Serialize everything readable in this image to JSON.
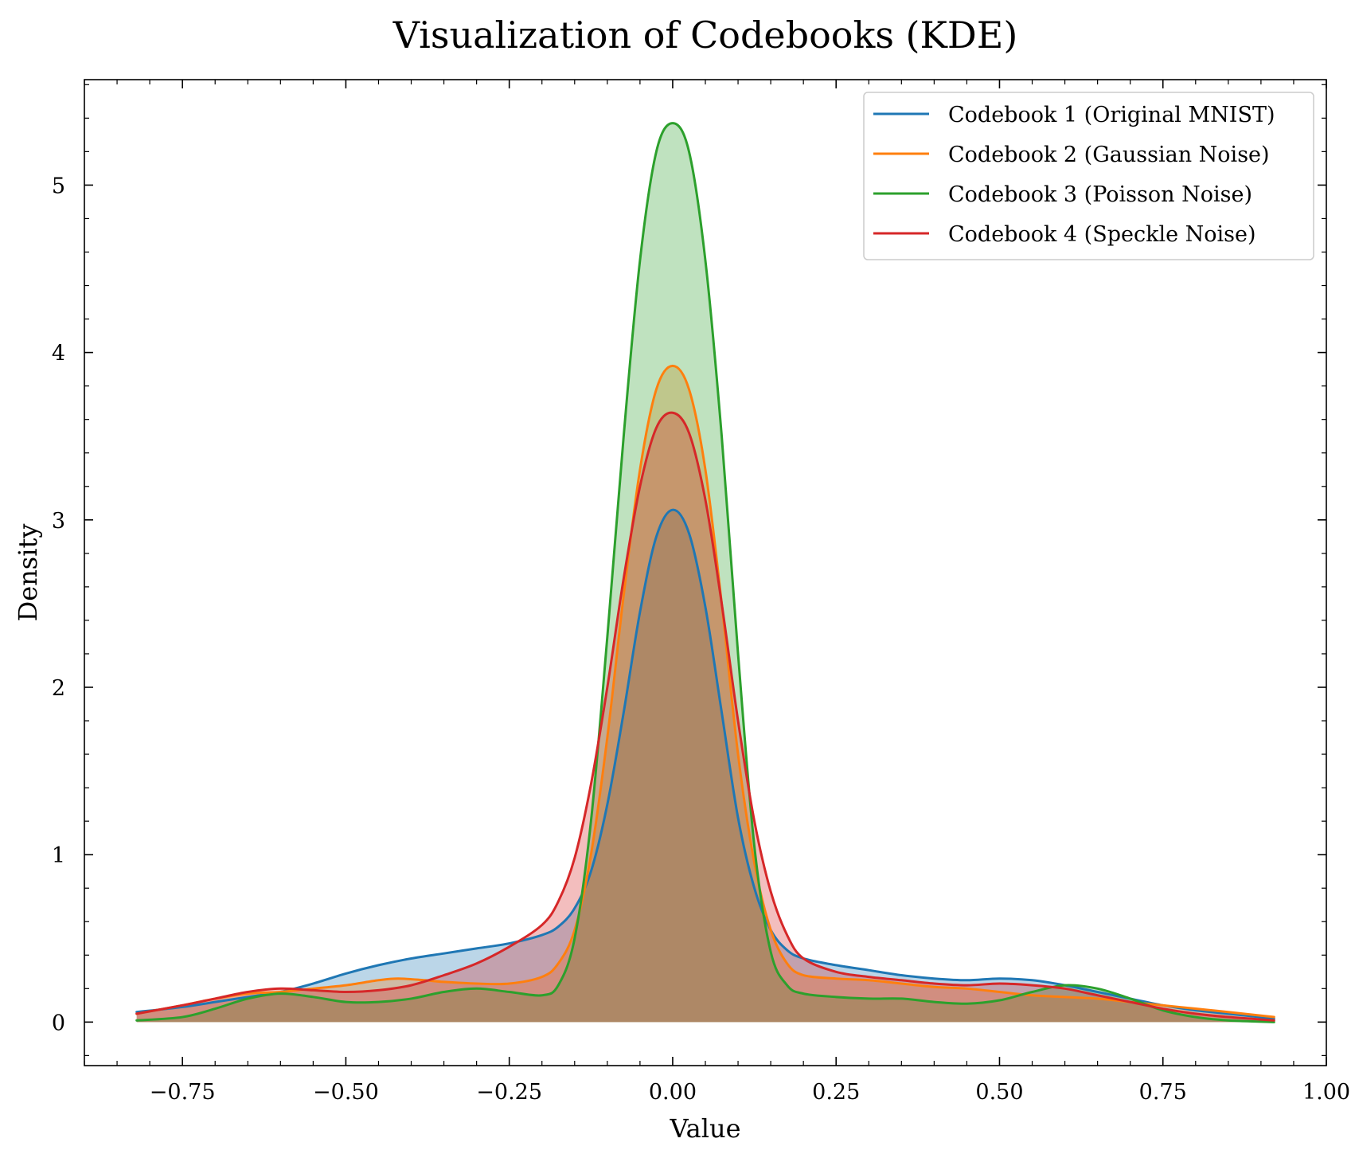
{
  "chart_data": {
    "type": "area",
    "title": "Visualization of Codebooks (KDE)",
    "xlabel": "Value",
    "ylabel": "Density",
    "xlim": [
      -0.9,
      1.0
    ],
    "ylim": [
      -0.26,
      5.63
    ],
    "x_ticks": [
      -0.75,
      -0.5,
      -0.25,
      0.0,
      0.25,
      0.5,
      0.75,
      1.0
    ],
    "x_tick_labels": [
      "−0.75",
      "−0.50",
      "−0.25",
      "0.00",
      "0.25",
      "0.50",
      "0.75",
      "1.00"
    ],
    "y_ticks": [
      0,
      1,
      2,
      3,
      4,
      5
    ],
    "y_tick_labels": [
      "0",
      "1",
      "2",
      "3",
      "4",
      "5"
    ],
    "grid": false,
    "legend_position": "top-right",
    "fill_alpha": 0.3,
    "series": [
      {
        "name": "Codebook 1 (Original MNIST)",
        "color": "#1f77b4",
        "x": [
          -0.82,
          -0.75,
          -0.7,
          -0.65,
          -0.6,
          -0.55,
          -0.5,
          -0.45,
          -0.4,
          -0.35,
          -0.3,
          -0.25,
          -0.2,
          -0.175,
          -0.15,
          -0.125,
          -0.1,
          -0.075,
          -0.05,
          -0.025,
          0.0,
          0.025,
          0.05,
          0.075,
          0.1,
          0.125,
          0.15,
          0.175,
          0.2,
          0.25,
          0.3,
          0.35,
          0.4,
          0.45,
          0.5,
          0.55,
          0.6,
          0.65,
          0.7,
          0.75,
          0.8,
          0.85,
          0.92
        ],
        "y": [
          0.06,
          0.09,
          0.12,
          0.15,
          0.18,
          0.23,
          0.29,
          0.34,
          0.38,
          0.41,
          0.44,
          0.47,
          0.52,
          0.57,
          0.68,
          0.9,
          1.3,
          1.85,
          2.45,
          2.9,
          3.06,
          2.92,
          2.48,
          1.85,
          1.22,
          0.8,
          0.55,
          0.43,
          0.38,
          0.34,
          0.31,
          0.28,
          0.26,
          0.25,
          0.26,
          0.25,
          0.22,
          0.18,
          0.14,
          0.1,
          0.07,
          0.05,
          0.02
        ]
      },
      {
        "name": "Codebook 2 (Gaussian Noise)",
        "color": "#ff7f0e",
        "x": [
          -0.82,
          -0.75,
          -0.7,
          -0.65,
          -0.6,
          -0.55,
          -0.5,
          -0.45,
          -0.42,
          -0.38,
          -0.35,
          -0.3,
          -0.25,
          -0.2,
          -0.175,
          -0.15,
          -0.125,
          -0.1,
          -0.075,
          -0.05,
          -0.025,
          0.0,
          0.025,
          0.05,
          0.075,
          0.1,
          0.125,
          0.15,
          0.175,
          0.2,
          0.25,
          0.3,
          0.35,
          0.4,
          0.45,
          0.5,
          0.55,
          0.6,
          0.65,
          0.7,
          0.75,
          0.8,
          0.85,
          0.92
        ],
        "y": [
          0.05,
          0.1,
          0.14,
          0.17,
          0.18,
          0.2,
          0.22,
          0.25,
          0.26,
          0.25,
          0.24,
          0.23,
          0.23,
          0.27,
          0.35,
          0.55,
          1.0,
          1.7,
          2.55,
          3.3,
          3.78,
          3.92,
          3.78,
          3.3,
          2.5,
          1.6,
          0.95,
          0.55,
          0.35,
          0.28,
          0.26,
          0.25,
          0.23,
          0.21,
          0.2,
          0.18,
          0.16,
          0.15,
          0.14,
          0.12,
          0.1,
          0.08,
          0.06,
          0.03
        ]
      },
      {
        "name": "Codebook 3 (Poisson Noise)",
        "color": "#2ca02c",
        "x": [
          -0.82,
          -0.75,
          -0.7,
          -0.65,
          -0.6,
          -0.55,
          -0.5,
          -0.45,
          -0.4,
          -0.35,
          -0.3,
          -0.25,
          -0.2,
          -0.175,
          -0.15,
          -0.125,
          -0.1,
          -0.075,
          -0.05,
          -0.025,
          0.0,
          0.025,
          0.05,
          0.075,
          0.1,
          0.125,
          0.15,
          0.175,
          0.2,
          0.25,
          0.3,
          0.35,
          0.4,
          0.45,
          0.5,
          0.55,
          0.6,
          0.65,
          0.7,
          0.75,
          0.8,
          0.85,
          0.92
        ],
        "y": [
          0.01,
          0.03,
          0.08,
          0.14,
          0.17,
          0.15,
          0.12,
          0.12,
          0.14,
          0.18,
          0.2,
          0.18,
          0.16,
          0.22,
          0.5,
          1.2,
          2.3,
          3.5,
          4.55,
          5.2,
          5.37,
          5.2,
          4.55,
          3.5,
          2.2,
          1.05,
          0.42,
          0.22,
          0.17,
          0.15,
          0.14,
          0.14,
          0.12,
          0.11,
          0.13,
          0.18,
          0.22,
          0.2,
          0.14,
          0.07,
          0.03,
          0.01,
          0.0
        ]
      },
      {
        "name": "Codebook 4 (Speckle Noise)",
        "color": "#d62728",
        "x": [
          -0.82,
          -0.75,
          -0.7,
          -0.65,
          -0.6,
          -0.55,
          -0.5,
          -0.45,
          -0.4,
          -0.35,
          -0.3,
          -0.25,
          -0.2,
          -0.175,
          -0.15,
          -0.125,
          -0.1,
          -0.075,
          -0.05,
          -0.025,
          0.0,
          0.025,
          0.05,
          0.075,
          0.1,
          0.125,
          0.15,
          0.175,
          0.2,
          0.25,
          0.3,
          0.35,
          0.4,
          0.45,
          0.5,
          0.55,
          0.6,
          0.65,
          0.7,
          0.75,
          0.8,
          0.85,
          0.92
        ],
        "y": [
          0.05,
          0.1,
          0.14,
          0.18,
          0.2,
          0.19,
          0.18,
          0.19,
          0.22,
          0.28,
          0.35,
          0.45,
          0.58,
          0.72,
          0.98,
          1.42,
          2.0,
          2.65,
          3.2,
          3.55,
          3.64,
          3.52,
          3.12,
          2.5,
          1.8,
          1.2,
          0.78,
          0.52,
          0.38,
          0.3,
          0.27,
          0.25,
          0.23,
          0.22,
          0.23,
          0.22,
          0.2,
          0.16,
          0.12,
          0.08,
          0.05,
          0.03,
          0.01
        ]
      }
    ]
  }
}
